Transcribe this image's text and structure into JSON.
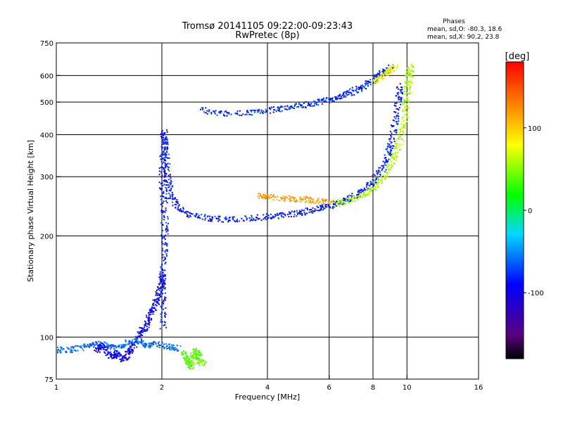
{
  "chart_data": {
    "type": "scatter",
    "title": "Tromsø 20141105 09:22:00-09:23:43",
    "subtitle": "RwPretec (8p)",
    "xlabel": "Frequency [MHz]",
    "ylabel": "Stationary phase Virtual Height [km]",
    "x_scale": "log",
    "y_scale": "log",
    "xlim": [
      1,
      16
    ],
    "ylim": [
      75,
      750
    ],
    "x_ticks": [
      1,
      2,
      4,
      6,
      8,
      10,
      16
    ],
    "x_tick_labels": [
      "1",
      "2",
      "4",
      "6",
      "8",
      "10",
      "16"
    ],
    "y_ticks": [
      75,
      100,
      200,
      300,
      400,
      500,
      600,
      750
    ],
    "y_tick_labels": [
      "75",
      "100",
      "200",
      "300",
      "400",
      "500",
      "600",
      "750"
    ],
    "x_grid": [
      2,
      4,
      6,
      8,
      10
    ],
    "y_grid": [
      100,
      200,
      300,
      400,
      500,
      600
    ],
    "grid": true,
    "stats": {
      "heading": "Phases",
      "o_line": "mean, sd,O: -80.3, 18.6",
      "x_line": "mean, sd,X:  90.2, 23.8"
    },
    "colorbar": {
      "label": "[deg]",
      "range": [
        -180,
        180
      ],
      "ticks": [
        100,
        0,
        -100
      ],
      "tick_labels": [
        "100",
        "0",
        "-100"
      ]
    },
    "traces": [
      {
        "name": "",
        "phase": -85,
        "points": [
          [
            2.0,
            108
          ],
          [
            2.0,
            130
          ],
          [
            2.01,
            160
          ],
          [
            2.02,
            190
          ],
          [
            2.03,
            220
          ],
          [
            2.02,
            260
          ],
          [
            2.0,
            300
          ],
          [
            2.01,
            340
          ],
          [
            2.03,
            380
          ],
          [
            2.02,
            410
          ],
          [
            2.05,
            350
          ],
          [
            2.07,
            300
          ],
          [
            2.1,
            270
          ],
          [
            2.2,
            245
          ],
          [
            2.4,
            232
          ],
          [
            2.7,
            226
          ],
          [
            3.0,
            225
          ],
          [
            3.5,
            226
          ],
          [
            4.0,
            229
          ],
          [
            4.5,
            232
          ],
          [
            5.0,
            236
          ],
          [
            5.5,
            241
          ],
          [
            6.0,
            247
          ],
          [
            6.5,
            254
          ],
          [
            7.0,
            262
          ],
          [
            7.5,
            275
          ],
          [
            8.0,
            292
          ],
          [
            8.5,
            320
          ],
          [
            8.8,
            350
          ],
          [
            9.0,
            385
          ],
          [
            9.2,
            440
          ],
          [
            9.4,
            510
          ],
          [
            9.5,
            560
          ]
        ]
      },
      {
        "name": "",
        "phase": -95,
        "points": [
          [
            1.7,
            100
          ],
          [
            1.75,
            105
          ],
          [
            1.8,
            110
          ],
          [
            1.85,
            118
          ],
          [
            1.9,
            125
          ],
          [
            1.95,
            135
          ],
          [
            2.0,
            145
          ],
          [
            2.0,
            155
          ]
        ]
      },
      {
        "name": "",
        "phase": -80,
        "points": [
          [
            2.6,
            475
          ],
          [
            3.0,
            465
          ],
          [
            3.5,
            465
          ],
          [
            4.0,
            475
          ],
          [
            4.5,
            483
          ],
          [
            5.0,
            492
          ],
          [
            5.5,
            500
          ],
          [
            6.0,
            510
          ],
          [
            6.5,
            522
          ],
          [
            7.0,
            540
          ],
          [
            7.5,
            560
          ],
          [
            8.0,
            585
          ],
          [
            8.5,
            615
          ],
          [
            9.0,
            640
          ]
        ]
      },
      {
        "name": "",
        "phase": 60,
        "points": [
          [
            6.2,
            250
          ],
          [
            6.8,
            256
          ],
          [
            7.5,
            266
          ],
          [
            8.0,
            278
          ],
          [
            8.5,
            298
          ],
          [
            9.0,
            330
          ],
          [
            9.3,
            360
          ],
          [
            9.6,
            400
          ],
          [
            9.8,
            450
          ],
          [
            9.9,
            500
          ],
          [
            10.0,
            550
          ],
          [
            10.1,
            600
          ],
          [
            10.2,
            640
          ]
        ]
      },
      {
        "name": "",
        "phase": 120,
        "points": [
          [
            3.8,
            265
          ],
          [
            4.0,
            262
          ],
          [
            4.5,
            260
          ],
          [
            5.0,
            258
          ],
          [
            5.5,
            256
          ],
          [
            6.0,
            254
          ]
        ]
      },
      {
        "name": "",
        "phase": 80,
        "points": [
          [
            8.0,
            570
          ],
          [
            8.4,
            600
          ],
          [
            8.8,
            620
          ],
          [
            9.2,
            640
          ]
        ]
      },
      {
        "name": "",
        "phase": -60,
        "points": [
          [
            1.0,
            92
          ],
          [
            1.1,
            92
          ],
          [
            1.2,
            94
          ],
          [
            1.3,
            96
          ],
          [
            1.4,
            95
          ],
          [
            1.5,
            93
          ],
          [
            1.6,
            97
          ],
          [
            1.7,
            98
          ],
          [
            1.8,
            94
          ],
          [
            1.9,
            96
          ],
          [
            2.1,
            94
          ],
          [
            2.2,
            93
          ]
        ]
      },
      {
        "name": "",
        "phase": 40,
        "points": [
          [
            2.3,
            90
          ],
          [
            2.35,
            85
          ],
          [
            2.4,
            82
          ],
          [
            2.45,
            88
          ],
          [
            2.5,
            92
          ],
          [
            2.55,
            86
          ],
          [
            2.6,
            84
          ]
        ]
      },
      {
        "name": "",
        "phase": -100,
        "points": [
          [
            1.3,
            92
          ],
          [
            1.35,
            95
          ],
          [
            1.42,
            88
          ],
          [
            1.48,
            90
          ],
          [
            1.55,
            86
          ],
          [
            1.6,
            91
          ],
          [
            1.65,
            95
          ]
        ]
      }
    ]
  }
}
